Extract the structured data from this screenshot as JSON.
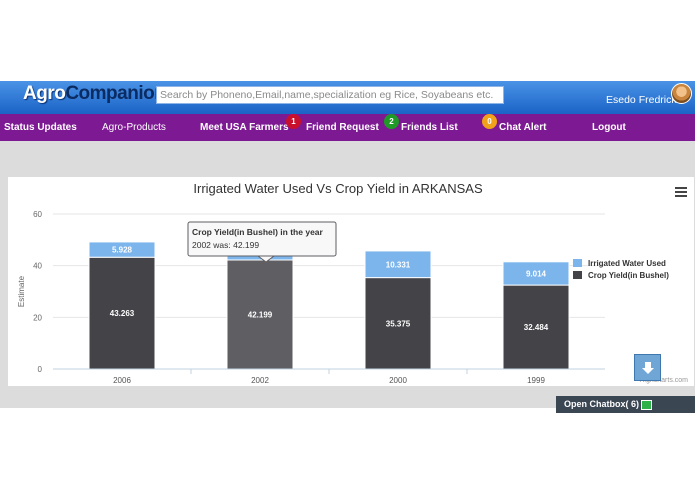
{
  "header": {
    "logo_part1": "Agro",
    "logo_part2": "Companion",
    "search_placeholder": "Search by Phoneno,Email,name,specialization eg Rice, Soyabeans etc.",
    "user_name": "Esedo Fredrick"
  },
  "nav": {
    "status_updates": "Status Updates",
    "agro_products": "Agro-Products",
    "meet_farmers": "Meet USA Farmers",
    "friend_request_count": "1",
    "friend_request": "Friend Request",
    "friends_list_count": "2",
    "friends_list": "Friends List",
    "chat_alert_count": "0",
    "chat_alert": "Chat Alert",
    "logout": "Logout"
  },
  "chatbox": {
    "label": "Open Chatbox( 6)"
  },
  "colors": {
    "water": "#7cb5ec",
    "crop": "#434348",
    "crop_hover": "#5e5e63",
    "nav": "#7d1a93",
    "header": "#2f7ad6"
  },
  "chart_data": {
    "type": "bar",
    "stacked": true,
    "title": "Irrigated Water Used Vs Crop Yield in ARKANSAS",
    "ylabel": "Estimate",
    "xlabel": "",
    "ylim": [
      0,
      60
    ],
    "yticks": [
      0,
      20,
      40,
      60
    ],
    "categories": [
      "2006",
      "2002",
      "2000",
      "1999"
    ],
    "series": [
      {
        "name": "Irrigated Water Used",
        "values": [
          5.928,
          5.0,
          10.331,
          9.014
        ],
        "labels": [
          "5.928",
          "",
          "10.331",
          "9.014"
        ]
      },
      {
        "name": "Crop Yield(in Bushel)",
        "values": [
          43.263,
          42.199,
          35.375,
          32.484
        ],
        "labels": [
          "43.263",
          "42.199",
          "35.375",
          "32.484"
        ]
      }
    ],
    "legend_position": "right",
    "tooltip": {
      "title": "Crop Yield(in Bushel) in the year",
      "body": "2002 was: 42.199"
    },
    "credit": "Highcharts.com"
  }
}
